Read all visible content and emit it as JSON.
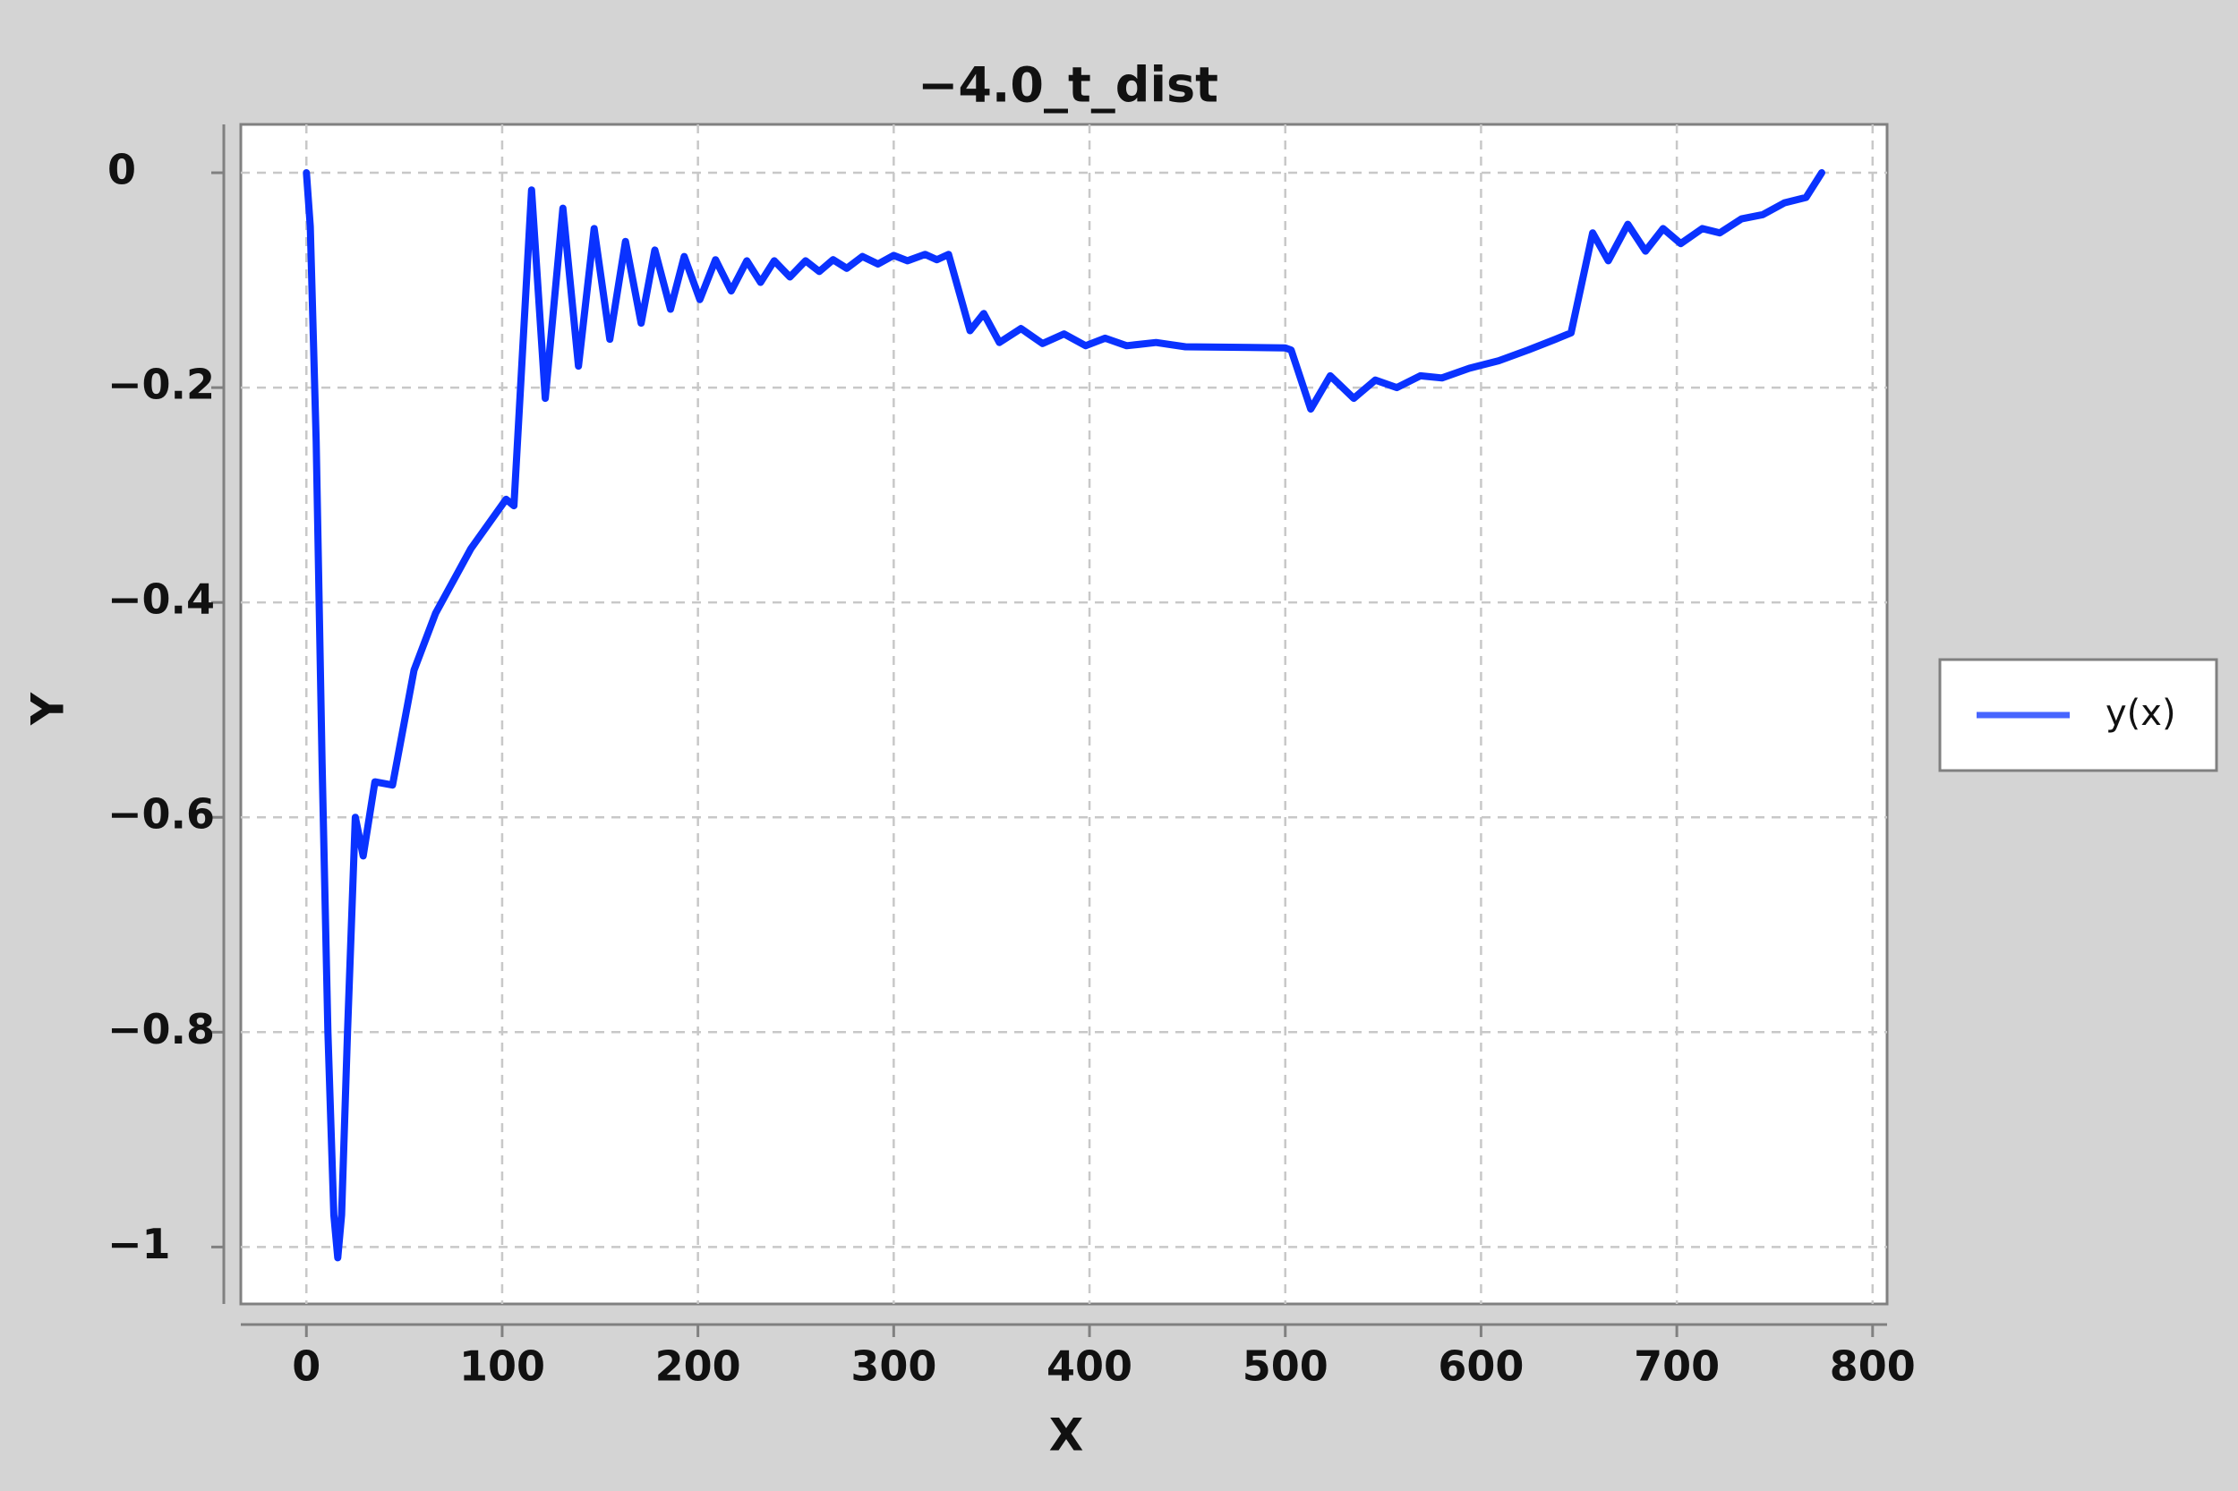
{
  "chart_data": {
    "type": "line",
    "title": "−4.0_t_dist",
    "x_label": "X",
    "y_label": "Y",
    "xlim": [
      -33.5,
      807.4
    ],
    "ylim": [
      -1.053,
      0.045
    ],
    "xticks": [
      0,
      100,
      200,
      300,
      400,
      500,
      600,
      700,
      800
    ],
    "yticks": [
      {
        "value": 0,
        "label": "0"
      },
      {
        "value": -0.2,
        "label": "−0.2"
      },
      {
        "value": -0.4,
        "label": "−0.4"
      },
      {
        "value": -0.6,
        "label": "−0.6"
      },
      {
        "value": -0.8,
        "label": "−0.8"
      },
      {
        "value": -1,
        "label": "−1"
      }
    ],
    "grid": true,
    "legend": "right",
    "series": [
      {
        "name": "y(x)",
        "color": "#0a32ff",
        "x": [
          0,
          2,
          5,
          8,
          11,
          14,
          16,
          18,
          21,
          25,
          29,
          35,
          44,
          55,
          66,
          84,
          102,
          106,
          115,
          122,
          131,
          139,
          147,
          155,
          163,
          171,
          178,
          186,
          193,
          201,
          209,
          217,
          225,
          232,
          239,
          247,
          255,
          262,
          269,
          276,
          284,
          292,
          300,
          307,
          316,
          322,
          328,
          339,
          346,
          354,
          365,
          376,
          387,
          398,
          408,
          419,
          434,
          449,
          500,
          503,
          513,
          523,
          535,
          546,
          557,
          569,
          580,
          594,
          609,
          624,
          638,
          646,
          657,
          665,
          675,
          684,
          693,
          702,
          713,
          722,
          733,
          744,
          755,
          766,
          774
        ],
        "values": [
          0,
          -0.05,
          -0.25,
          -0.55,
          -0.8,
          -0.97,
          -1.01,
          -0.97,
          -0.8,
          -0.6,
          -0.636,
          -0.567,
          -0.57,
          -0.463,
          -0.41,
          -0.35,
          -0.304,
          -0.31,
          -0.016,
          -0.21,
          -0.033,
          -0.18,
          -0.052,
          -0.155,
          -0.064,
          -0.14,
          -0.072,
          -0.127,
          -0.078,
          -0.118,
          -0.081,
          -0.11,
          -0.082,
          -0.102,
          -0.082,
          -0.097,
          -0.082,
          -0.092,
          -0.081,
          -0.089,
          -0.078,
          -0.085,
          -0.077,
          -0.082,
          -0.076,
          -0.081,
          -0.076,
          -0.147,
          -0.131,
          -0.158,
          -0.145,
          -0.159,
          -0.15,
          -0.161,
          -0.154,
          -0.161,
          -0.158,
          -0.162,
          -0.163,
          -0.165,
          -0.22,
          -0.189,
          -0.21,
          -0.193,
          -0.2,
          -0.189,
          -0.191,
          -0.182,
          -0.175,
          -0.165,
          -0.155,
          -0.149,
          -0.056,
          -0.082,
          -0.048,
          -0.073,
          -0.052,
          -0.066,
          -0.052,
          -0.056,
          -0.043,
          -0.039,
          -0.028,
          -0.023,
          0
        ]
      }
    ]
  }
}
